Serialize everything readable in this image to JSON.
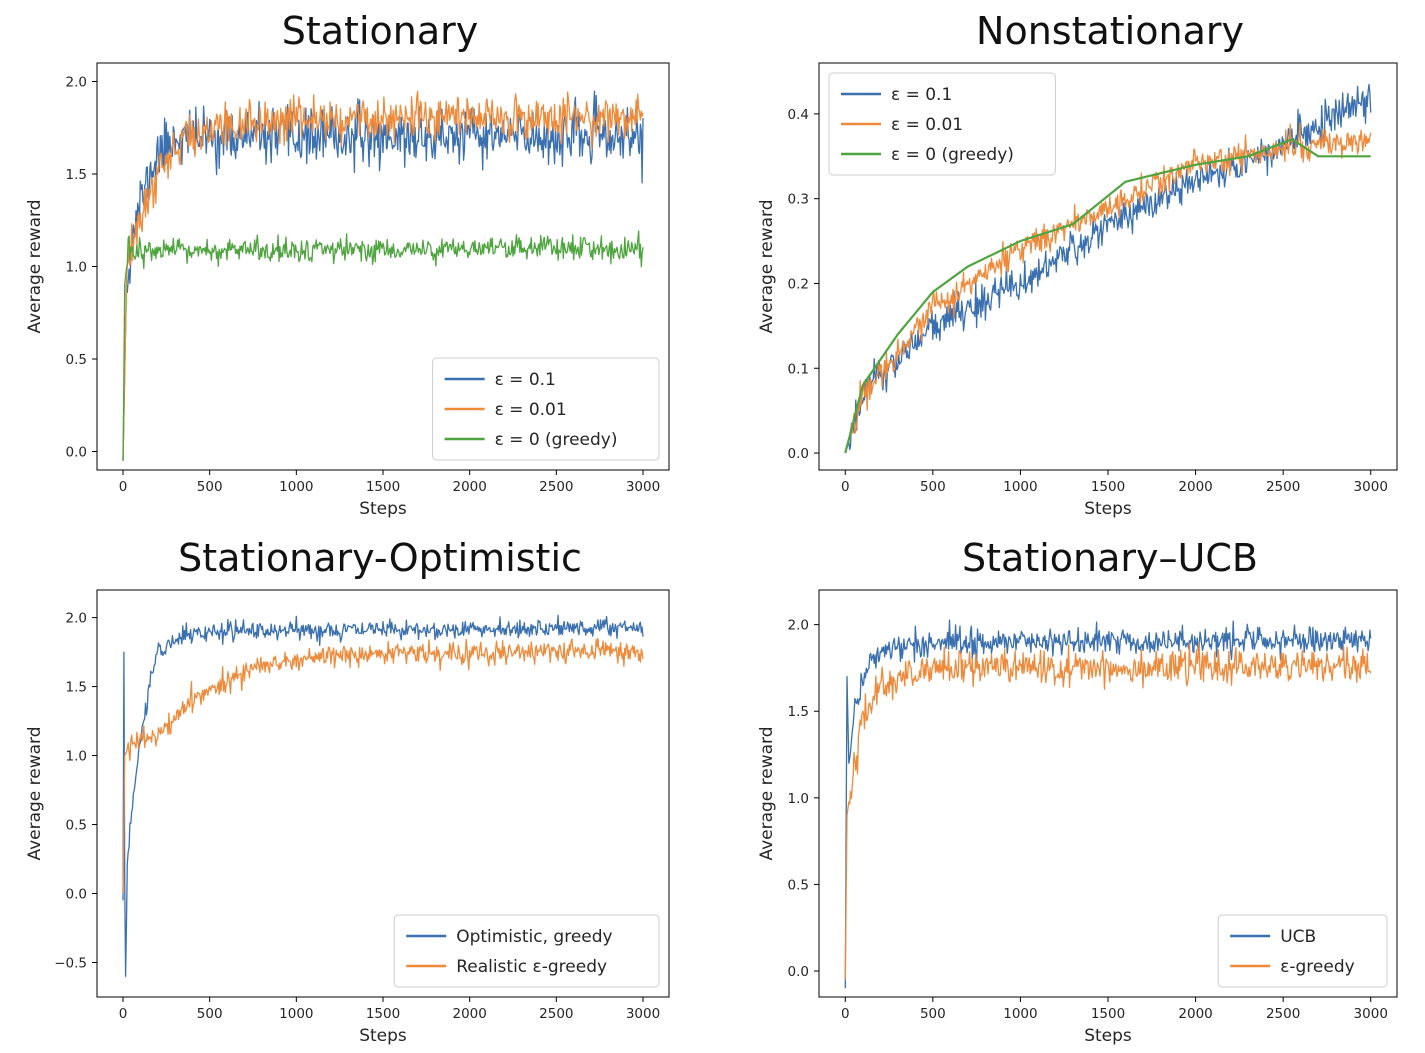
{
  "chart_data": [
    {
      "type": "line",
      "title": "Stationary",
      "xlabel": "Steps",
      "ylabel": "Average reward",
      "xlim": [
        -150,
        3150
      ],
      "ylim": [
        -0.1,
        2.1
      ],
      "xticks": [
        0,
        500,
        1000,
        1500,
        2000,
        2500,
        3000
      ],
      "yticks": [
        0.0,
        0.5,
        1.0,
        1.5,
        2.0
      ],
      "yticklabels": [
        "0.0",
        "0.5",
        "1.0",
        "1.5",
        "2.0"
      ],
      "grid": false,
      "legend_placement": "lower-right",
      "series": [
        {
          "name": "ε = 0.1",
          "color": "#3a6fb0",
          "noise": 0.13,
          "seed": 11,
          "points": [
            [
              0,
              -0.05
            ],
            [
              20,
              0.9
            ],
            [
              50,
              1.15
            ],
            [
              100,
              1.35
            ],
            [
              200,
              1.6
            ],
            [
              300,
              1.7
            ],
            [
              500,
              1.7
            ],
            [
              3000,
              1.7
            ]
          ]
        },
        {
          "name": "ε = 0.01",
          "color": "#ef8a3a",
          "noise": 0.1,
          "seed": 12,
          "points": [
            [
              0,
              -0.05
            ],
            [
              20,
              0.9
            ],
            [
              50,
              1.1
            ],
            [
              100,
              1.25
            ],
            [
              200,
              1.5
            ],
            [
              300,
              1.65
            ],
            [
              500,
              1.75
            ],
            [
              1000,
              1.8
            ],
            [
              3000,
              1.81
            ]
          ]
        },
        {
          "name": "ε = 0 (greedy)",
          "color": "#4ea43e",
          "noise": 0.06,
          "seed": 13,
          "points": [
            [
              0,
              -0.05
            ],
            [
              10,
              0.9
            ],
            [
              30,
              1.08
            ],
            [
              3000,
              1.1
            ]
          ]
        }
      ]
    },
    {
      "type": "line",
      "title": "Nonstationary",
      "xlabel": "Steps",
      "ylabel": "Average reward",
      "xlim": [
        -150,
        3150
      ],
      "ylim": [
        -0.02,
        0.46
      ],
      "xticks": [
        0,
        500,
        1000,
        1500,
        2000,
        2500,
        3000
      ],
      "yticks": [
        0.0,
        0.1,
        0.2,
        0.3,
        0.4
      ],
      "yticklabels": [
        "0.0",
        "0.1",
        "0.2",
        "0.3",
        "0.4"
      ],
      "grid": false,
      "legend_placement": "top-left",
      "series": [
        {
          "name": "ε = 0.1",
          "color": "#3a6fb0",
          "noise": 0.02,
          "seed": 21,
          "points": [
            [
              0,
              0
            ],
            [
              100,
              0.07
            ],
            [
              500,
              0.15
            ],
            [
              1000,
              0.2
            ],
            [
              1500,
              0.27
            ],
            [
              2000,
              0.32
            ],
            [
              2500,
              0.36
            ],
            [
              2700,
              0.39
            ],
            [
              3000,
              0.42
            ]
          ]
        },
        {
          "name": "ε = 0.01",
          "color": "#ef8a3a",
          "noise": 0.015,
          "seed": 22,
          "points": [
            [
              0,
              0
            ],
            [
              100,
              0.07
            ],
            [
              500,
              0.17
            ],
            [
              1000,
              0.24
            ],
            [
              1500,
              0.29
            ],
            [
              2000,
              0.34
            ],
            [
              2500,
              0.36
            ],
            [
              3000,
              0.37
            ]
          ]
        },
        {
          "name": "ε = 0 (greedy)",
          "color": "#4ea43e",
          "noise": 0.0,
          "seed": 23,
          "points": [
            [
              0,
              0
            ],
            [
              100,
              0.08
            ],
            [
              300,
              0.14
            ],
            [
              500,
              0.19
            ],
            [
              700,
              0.22
            ],
            [
              1000,
              0.25
            ],
            [
              1300,
              0.27
            ],
            [
              1600,
              0.32
            ],
            [
              1800,
              0.33
            ],
            [
              2000,
              0.34
            ],
            [
              2300,
              0.35
            ],
            [
              2550,
              0.37
            ],
            [
              2700,
              0.35
            ],
            [
              3000,
              0.35
            ]
          ]
        }
      ]
    },
    {
      "type": "line",
      "title": "Stationary-Optimistic",
      "xlabel": "Steps",
      "ylabel": "Average reward",
      "xlim": [
        -150,
        3150
      ],
      "ylim": [
        -0.75,
        2.2
      ],
      "xticks": [
        0,
        500,
        1000,
        1500,
        2000,
        2500,
        3000
      ],
      "yticks": [
        -0.5,
        0.0,
        0.5,
        1.0,
        1.5,
        2.0
      ],
      "yticklabels": [
        "−0.5",
        "0.0",
        "0.5",
        "1.0",
        "1.5",
        "2.0"
      ],
      "grid": false,
      "legend_placement": "lower-right",
      "series": [
        {
          "name": "Optimistic, greedy",
          "color": "#3a6fb0",
          "noise": 0.06,
          "seed": 31,
          "points": [
            [
              0,
              -0.05
            ],
            [
              5,
              1.75
            ],
            [
              10,
              0.1
            ],
            [
              15,
              -0.6
            ],
            [
              25,
              0.2
            ],
            [
              50,
              0.6
            ],
            [
              100,
              1.1
            ],
            [
              150,
              1.5
            ],
            [
              200,
              1.75
            ],
            [
              300,
              1.85
            ],
            [
              500,
              1.9
            ],
            [
              3000,
              1.93
            ]
          ]
        },
        {
          "name": "Realistic ε-greedy",
          "color": "#ef8a3a",
          "noise": 0.07,
          "seed": 32,
          "points": [
            [
              0,
              0.0
            ],
            [
              10,
              1.0
            ],
            [
              50,
              1.1
            ],
            [
              200,
              1.15
            ],
            [
              400,
              1.4
            ],
            [
              600,
              1.55
            ],
            [
              800,
              1.65
            ],
            [
              1000,
              1.7
            ],
            [
              1500,
              1.74
            ],
            [
              3000,
              1.75
            ]
          ]
        }
      ]
    },
    {
      "type": "line",
      "title": "Stationary–UCB",
      "xlabel": "Steps",
      "ylabel": "Average reward",
      "xlim": [
        -150,
        3150
      ],
      "ylim": [
        -0.15,
        2.2
      ],
      "xticks": [
        0,
        500,
        1000,
        1500,
        2000,
        2500,
        3000
      ],
      "yticks": [
        0.0,
        0.5,
        1.0,
        1.5,
        2.0
      ],
      "yticklabels": [
        "0.0",
        "0.5",
        "1.0",
        "1.5",
        "2.0"
      ],
      "grid": false,
      "legend_placement": "lower-right",
      "series": [
        {
          "name": "UCB",
          "color": "#3a6fb0",
          "noise": 0.07,
          "seed": 41,
          "points": [
            [
              0,
              -0.1
            ],
            [
              10,
              1.7
            ],
            [
              20,
              1.2
            ],
            [
              50,
              1.5
            ],
            [
              100,
              1.7
            ],
            [
              200,
              1.85
            ],
            [
              500,
              1.9
            ],
            [
              3000,
              1.91
            ]
          ]
        },
        {
          "name": "ε-greedy",
          "color": "#ef8a3a",
          "noise": 0.09,
          "seed": 42,
          "points": [
            [
              0,
              -0.05
            ],
            [
              10,
              0.9
            ],
            [
              50,
              1.2
            ],
            [
              100,
              1.45
            ],
            [
              200,
              1.65
            ],
            [
              500,
              1.75
            ],
            [
              3000,
              1.76
            ]
          ]
        }
      ]
    }
  ]
}
